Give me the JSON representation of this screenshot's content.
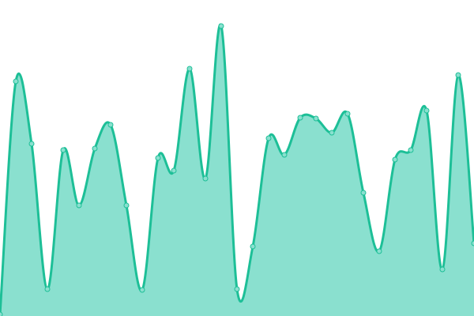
{
  "chart_data": {
    "type": "area",
    "smooth": true,
    "x": [
      0,
      1,
      2,
      3,
      4,
      5,
      6,
      7,
      8,
      9,
      10,
      11,
      12,
      13,
      14,
      15,
      16,
      17,
      18,
      19,
      20,
      21,
      22,
      23,
      24,
      25,
      26,
      27,
      28,
      29,
      30
    ],
    "values": [
      2,
      297,
      218,
      34,
      210,
      140,
      212,
      242,
      140,
      33,
      200,
      184,
      313,
      174,
      367,
      34,
      88,
      225,
      204,
      251,
      250,
      232,
      256,
      156,
      82,
      198,
      210,
      260,
      59,
      305,
      92
    ],
    "xlim": [
      0,
      30
    ],
    "ylim": [
      0,
      400
    ],
    "grid": false,
    "axes_visible": false,
    "colors": {
      "line": "#1dbf97",
      "fill": "#8ae0cf",
      "marker_fill": "#8ae0cf",
      "marker_stroke": "#1dbf97"
    }
  }
}
